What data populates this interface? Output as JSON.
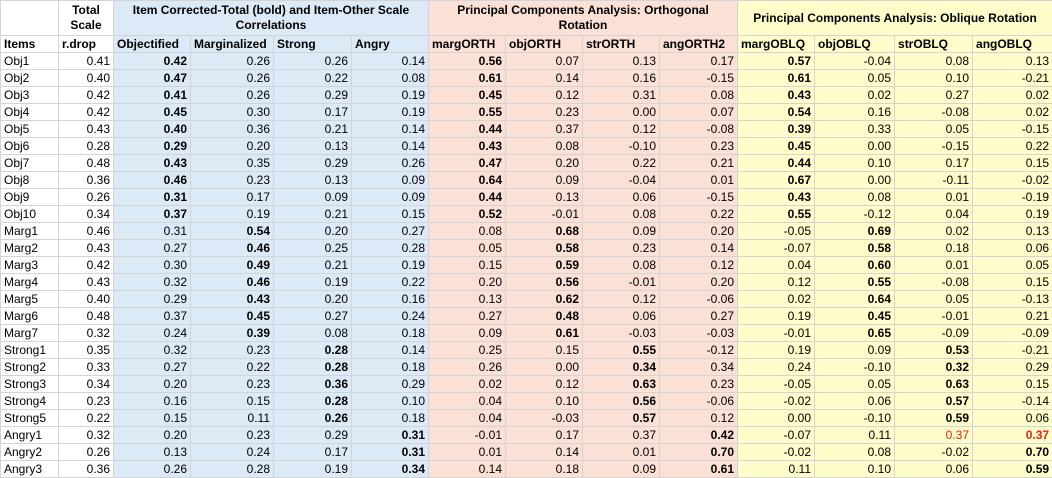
{
  "header": {
    "total_scale": "Total Scale",
    "group_corrected": "Item Corrected-Total (bold) and Item-Other Scale Correlations",
    "group_orth": "Principal Components Analysis: Orthogonal Rotation",
    "group_obl": "Principal Components Analysis: Oblique Rotation"
  },
  "columns": [
    "Items",
    "r.drop",
    "Objectified",
    "Marginalized",
    "Strong",
    "Angry",
    "margORTH",
    "objORTH",
    "strORTH",
    "angORTH2",
    "margOBLQ",
    "objOBLQ",
    "strOBLQ",
    "angOBLQ"
  ],
  "bold_note": "bold values marked with b flag",
  "rows": [
    {
      "item": "Obj1",
      "v": [
        "0.41",
        "0.42",
        "0.26",
        "0.26",
        "0.14",
        "0.56",
        "0.07",
        "0.13",
        "0.17",
        "0.57",
        "-0.04",
        "0.08",
        "0.13"
      ],
      "b": [
        1,
        5,
        9
      ]
    },
    {
      "item": "Obj2",
      "v": [
        "0.40",
        "0.47",
        "0.26",
        "0.22",
        "0.08",
        "0.61",
        "0.14",
        "0.16",
        "-0.15",
        "0.61",
        "0.05",
        "0.10",
        "-0.21"
      ],
      "b": [
        1,
        5,
        9
      ]
    },
    {
      "item": "Obj3",
      "v": [
        "0.42",
        "0.41",
        "0.26",
        "0.29",
        "0.19",
        "0.45",
        "0.12",
        "0.31",
        "0.08",
        "0.43",
        "0.02",
        "0.27",
        "0.02"
      ],
      "b": [
        1,
        5,
        9
      ]
    },
    {
      "item": "Obj4",
      "v": [
        "0.42",
        "0.45",
        "0.30",
        "0.17",
        "0.19",
        "0.55",
        "0.23",
        "0.00",
        "0.07",
        "0.54",
        "0.16",
        "-0.08",
        "0.02"
      ],
      "b": [
        1,
        5,
        9
      ]
    },
    {
      "item": "Obj5",
      "v": [
        "0.43",
        "0.40",
        "0.36",
        "0.21",
        "0.14",
        "0.44",
        "0.37",
        "0.12",
        "-0.08",
        "0.39",
        "0.33",
        "0.05",
        "-0.15"
      ],
      "b": [
        1,
        5,
        9
      ]
    },
    {
      "item": "Obj6",
      "v": [
        "0.28",
        "0.29",
        "0.20",
        "0.13",
        "0.14",
        "0.43",
        "0.08",
        "-0.10",
        "0.23",
        "0.45",
        "0.00",
        "-0.15",
        "0.22"
      ],
      "b": [
        1,
        5,
        9
      ]
    },
    {
      "item": "Obj7",
      "v": [
        "0.48",
        "0.43",
        "0.35",
        "0.29",
        "0.26",
        "0.47",
        "0.20",
        "0.22",
        "0.21",
        "0.44",
        "0.10",
        "0.17",
        "0.15"
      ],
      "b": [
        1,
        5,
        9
      ]
    },
    {
      "item": "Obj8",
      "v": [
        "0.36",
        "0.46",
        "0.23",
        "0.13",
        "0.09",
        "0.64",
        "0.09",
        "-0.04",
        "0.01",
        "0.67",
        "0.00",
        "-0.11",
        "-0.02"
      ],
      "b": [
        1,
        5,
        9
      ]
    },
    {
      "item": "Obj9",
      "v": [
        "0.26",
        "0.31",
        "0.17",
        "0.09",
        "0.09",
        "0.44",
        "0.13",
        "0.06",
        "-0.15",
        "0.43",
        "0.08",
        "0.01",
        "-0.19"
      ],
      "b": [
        1,
        5,
        9
      ]
    },
    {
      "item": "Obj10",
      "v": [
        "0.34",
        "0.37",
        "0.19",
        "0.21",
        "0.15",
        "0.52",
        "-0.01",
        "0.08",
        "0.22",
        "0.55",
        "-0.12",
        "0.04",
        "0.19"
      ],
      "b": [
        1,
        5,
        9
      ]
    },
    {
      "item": "Marg1",
      "v": [
        "0.46",
        "0.31",
        "0.54",
        "0.20",
        "0.27",
        "0.08",
        "0.68",
        "0.09",
        "0.20",
        "-0.05",
        "0.69",
        "0.02",
        "0.13"
      ],
      "b": [
        2,
        6,
        10
      ]
    },
    {
      "item": "Marg2",
      "v": [
        "0.43",
        "0.27",
        "0.46",
        "0.25",
        "0.28",
        "0.05",
        "0.58",
        "0.23",
        "0.14",
        "-0.07",
        "0.58",
        "0.18",
        "0.06"
      ],
      "b": [
        2,
        6,
        10
      ]
    },
    {
      "item": "Marg3",
      "v": [
        "0.42",
        "0.30",
        "0.49",
        "0.21",
        "0.19",
        "0.15",
        "0.59",
        "0.08",
        "0.12",
        "0.04",
        "0.60",
        "0.01",
        "0.05"
      ],
      "b": [
        2,
        6,
        10
      ]
    },
    {
      "item": "Marg4",
      "v": [
        "0.43",
        "0.32",
        "0.46",
        "0.19",
        "0.22",
        "0.20",
        "0.56",
        "-0.01",
        "0.20",
        "0.12",
        "0.55",
        "-0.08",
        "0.15"
      ],
      "b": [
        2,
        6,
        10
      ]
    },
    {
      "item": "Marg5",
      "v": [
        "0.40",
        "0.29",
        "0.43",
        "0.20",
        "0.16",
        "0.13",
        "0.62",
        "0.12",
        "-0.06",
        "0.02",
        "0.64",
        "0.05",
        "-0.13"
      ],
      "b": [
        2,
        6,
        10
      ]
    },
    {
      "item": "Marg6",
      "v": [
        "0.48",
        "0.37",
        "0.45",
        "0.27",
        "0.24",
        "0.27",
        "0.48",
        "0.06",
        "0.27",
        "0.19",
        "0.45",
        "-0.01",
        "0.21"
      ],
      "b": [
        2,
        6,
        10
      ]
    },
    {
      "item": "Marg7",
      "v": [
        "0.32",
        "0.24",
        "0.39",
        "0.08",
        "0.18",
        "0.09",
        "0.61",
        "-0.03",
        "-0.03",
        "-0.01",
        "0.65",
        "-0.09",
        "-0.09"
      ],
      "b": [
        2,
        6,
        10
      ]
    },
    {
      "item": "Strong1",
      "v": [
        "0.35",
        "0.32",
        "0.23",
        "0.28",
        "0.14",
        "0.25",
        "0.15",
        "0.55",
        "-0.12",
        "0.19",
        "0.09",
        "0.53",
        "-0.21"
      ],
      "b": [
        3,
        7,
        11
      ]
    },
    {
      "item": "Strong2",
      "v": [
        "0.33",
        "0.27",
        "0.22",
        "0.28",
        "0.18",
        "0.26",
        "0.00",
        "0.34",
        "0.34",
        "0.24",
        "-0.10",
        "0.32",
        "0.29"
      ],
      "b": [
        3,
        7,
        11
      ]
    },
    {
      "item": "Strong3",
      "v": [
        "0.34",
        "0.20",
        "0.23",
        "0.36",
        "0.29",
        "0.02",
        "0.12",
        "0.63",
        "0.23",
        "-0.05",
        "0.05",
        "0.63",
        "0.15"
      ],
      "b": [
        3,
        7,
        11
      ]
    },
    {
      "item": "Strong4",
      "v": [
        "0.23",
        "0.16",
        "0.15",
        "0.28",
        "0.10",
        "0.04",
        "0.10",
        "0.56",
        "-0.06",
        "-0.02",
        "0.06",
        "0.57",
        "-0.14"
      ],
      "b": [
        3,
        7,
        11
      ]
    },
    {
      "item": "Strong5",
      "v": [
        "0.22",
        "0.15",
        "0.11",
        "0.26",
        "0.18",
        "0.04",
        "-0.03",
        "0.57",
        "0.12",
        "0.00",
        "-0.10",
        "0.59",
        "0.06"
      ],
      "b": [
        3,
        7,
        11
      ]
    },
    {
      "item": "Angry1",
      "v": [
        "0.32",
        "0.20",
        "0.23",
        "0.29",
        "0.31",
        "-0.01",
        "0.17",
        "0.37",
        "0.42",
        "-0.07",
        "0.11",
        "0.37",
        "0.37"
      ],
      "b": [
        4,
        8,
        12
      ],
      "red": [
        11,
        12
      ]
    },
    {
      "item": "Angry2",
      "v": [
        "0.26",
        "0.13",
        "0.24",
        "0.17",
        "0.31",
        "0.01",
        "0.14",
        "0.01",
        "0.70",
        "-0.02",
        "0.08",
        "-0.02",
        "0.70"
      ],
      "b": [
        4,
        8,
        12
      ]
    },
    {
      "item": "Angry3",
      "v": [
        "0.36",
        "0.26",
        "0.28",
        "0.19",
        "0.34",
        "0.14",
        "0.18",
        "0.09",
        "0.61",
        "0.11",
        "0.10",
        "0.06",
        "0.59"
      ],
      "b": [
        4,
        8,
        12
      ]
    }
  ]
}
